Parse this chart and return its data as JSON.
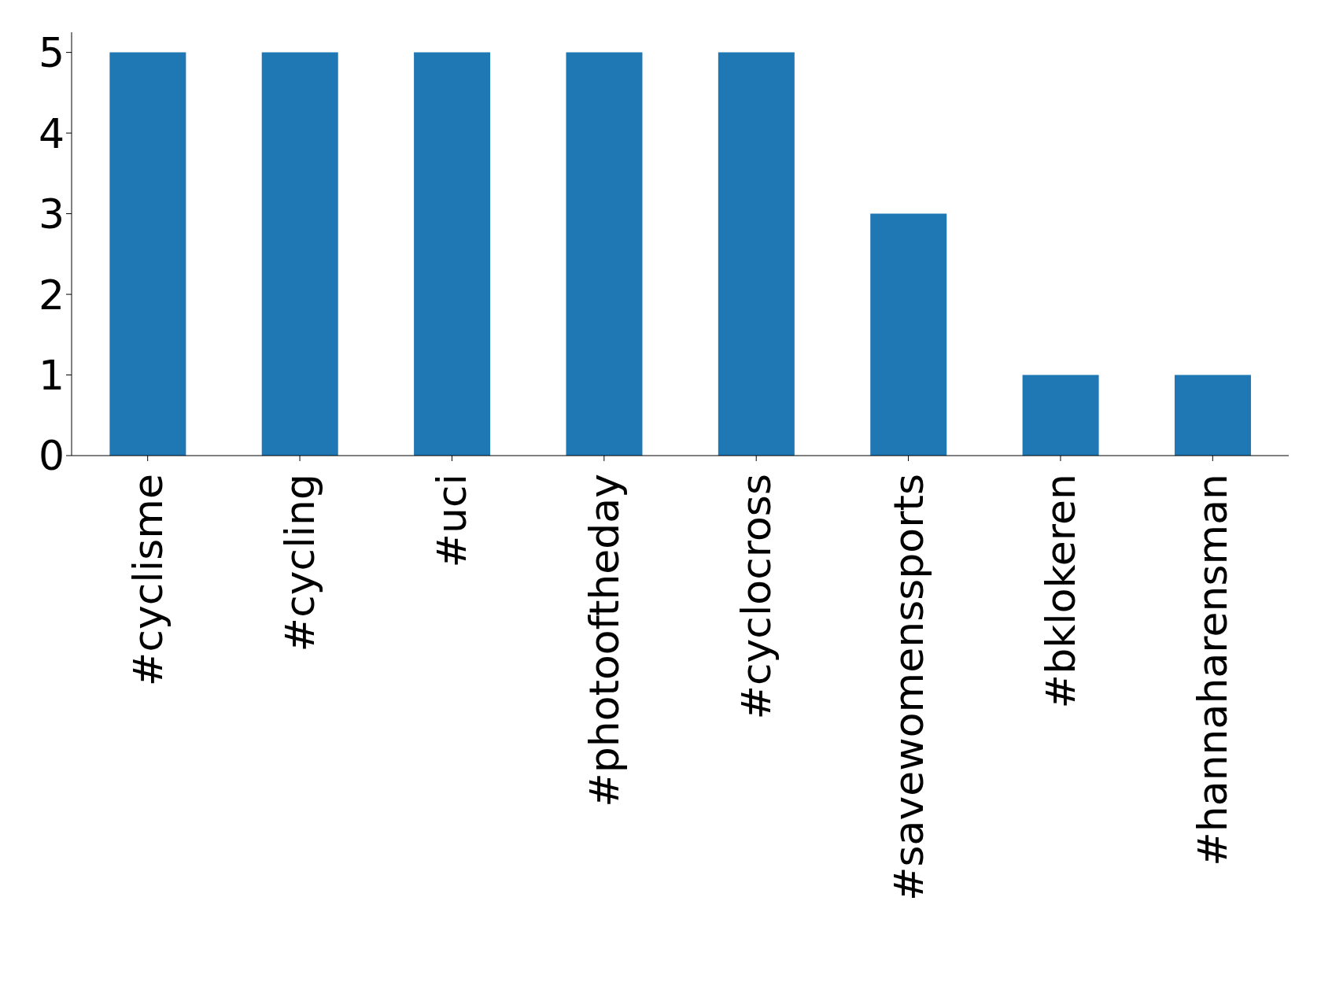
{
  "chart_data": {
    "type": "bar",
    "categories": [
      "#cyclisme",
      "#cycling",
      "#uci",
      "#photooftheday",
      "#cyclocross",
      "#savewomenssports",
      "#bklokeren",
      "#hannaharensman"
    ],
    "values": [
      5,
      5,
      5,
      5,
      5,
      3,
      1,
      1
    ],
    "color": "#1f77b4",
    "ylim": [
      0,
      5.25
    ],
    "yticks": [
      0,
      1,
      2,
      3,
      4,
      5
    ]
  }
}
